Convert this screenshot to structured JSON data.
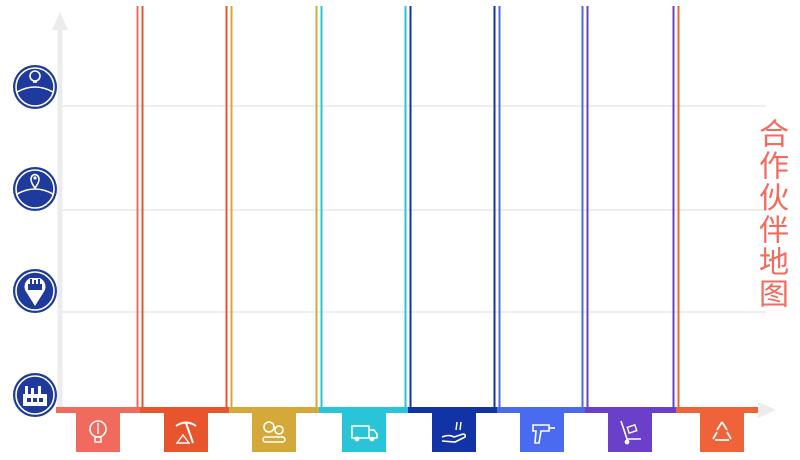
{
  "title": "合作伙伴地图",
  "colors": {
    "title": "#f26b5e",
    "level_icon": "#1e3a9c",
    "grid": "#e4e4e4",
    "axis": "#ececec"
  },
  "levels": [
    {
      "icon": "globe-lightbulb-icon"
    },
    {
      "icon": "globe-map-pin-icon"
    },
    {
      "icon": "factory-pin-icon"
    },
    {
      "icon": "factory-icon"
    }
  ],
  "stages": [
    {
      "icon": "lightbulb-pencil-icon",
      "color": "#f06a5d"
    },
    {
      "icon": "pickaxe-mining-icon",
      "color": "#e8542b"
    },
    {
      "icon": "gears-conveyor-icon",
      "color": "#d4a93a"
    },
    {
      "icon": "delivery-van-icon",
      "color": "#29c4d8"
    },
    {
      "icon": "hand-money-icon",
      "color": "#1233a6"
    },
    {
      "icon": "power-drill-icon",
      "color": "#4a6bf0"
    },
    {
      "icon": "hand-truck-icon",
      "color": "#6a3fc9"
    },
    {
      "icon": "recycle-icon",
      "color": "#f0623a"
    }
  ]
}
